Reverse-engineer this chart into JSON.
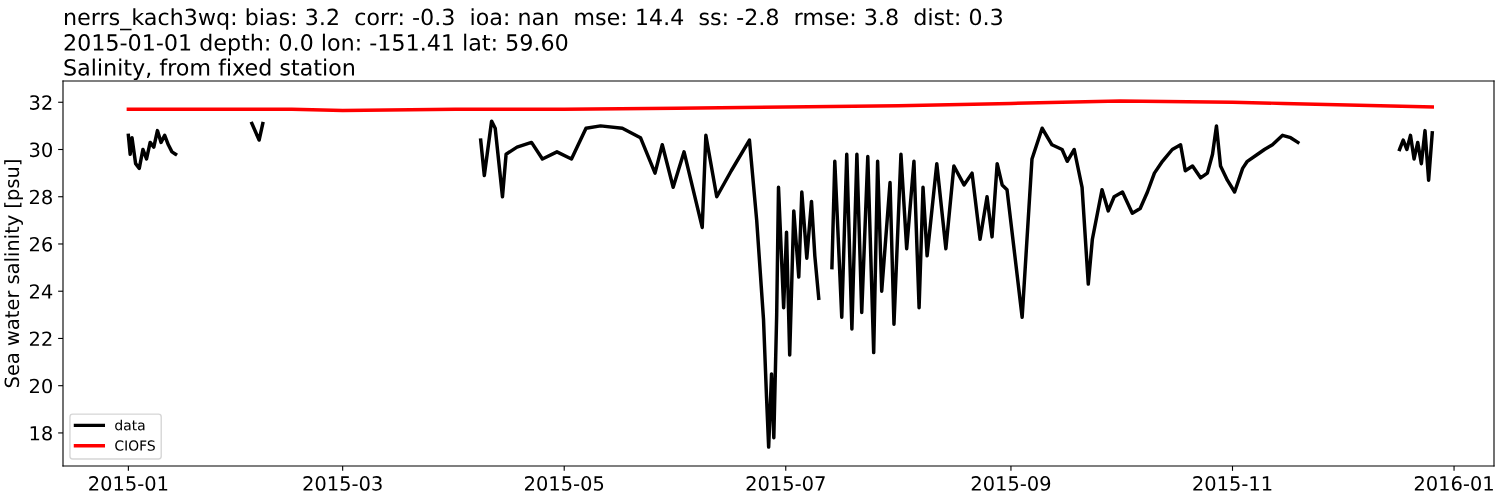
{
  "chart_data": {
    "type": "line",
    "title": "nerrs_kach3wq: bias: 3.2  corr: -0.3  ioa: nan  mse: 14.4  ss: -2.8  rmse: 3.8  dist: 0.3\n2015-01-01 depth: 0.0 lon: -151.41 lat: 59.60\nSalinity, from fixed station",
    "ylabel": "Sea water salinity [psu]",
    "series": [
      {
        "name": "data",
        "color": "#000000",
        "x": [
          "2015-01-01",
          "2015-01-01T12:00",
          "2015-01-02",
          "2015-01-03",
          "2015-01-04",
          "2015-01-05",
          "2015-01-06",
          "2015-01-07",
          "2015-01-08",
          "2015-01-09",
          "2015-01-10",
          "2015-01-11",
          "2015-01-12",
          "2015-01-13",
          "2015-01-14",
          "2015-01-25",
          "2015-02-04",
          "2015-02-06",
          "2015-02-07",
          "2015-03-20",
          "2015-04-08",
          "2015-04-09",
          "2015-04-11",
          "2015-04-12",
          "2015-04-14",
          "2015-04-15",
          "2015-04-18",
          "2015-04-22",
          "2015-04-25",
          "2015-04-29",
          "2015-05-03",
          "2015-05-07",
          "2015-05-11",
          "2015-05-17",
          "2015-05-22",
          "2015-05-26",
          "2015-05-28",
          "2015-05-31",
          "2015-06-03",
          "2015-06-08",
          "2015-06-09",
          "2015-06-12",
          "2015-06-16",
          "2015-06-21",
          "2015-06-23",
          "2015-06-24T21:00",
          "2015-06-25T17:00",
          "2015-06-26T07:00",
          "2015-06-27T02:00",
          "2015-06-27T17:00",
          "2015-06-28T12:00",
          "2015-06-29",
          "2015-06-30T10:00",
          "2015-07-01T05:00",
          "2015-07-02T02:00",
          "2015-07-03T05:00",
          "2015-07-04T14:00",
          "2015-07-05T10:00",
          "2015-07-06T19:00",
          "2015-07-08T02:00",
          "2015-07-09",
          "2015-07-10T02:00",
          "2015-07-12",
          "2015-07-13T17:00",
          "2015-07-14T12:00",
          "2015-07-16T10:00",
          "2015-07-17T19:00",
          "2015-07-19T05:00",
          "2015-07-20T14:00",
          "2015-07-21T22:00",
          "2015-07-23T14:00",
          "2015-07-25T05:00",
          "2015-07-26T07:00",
          "2015-07-27T10:00",
          "2015-07-29T17:00",
          "2015-07-30T19:00",
          "2015-08-01T17:00",
          "2015-08-03T07:00",
          "2015-08-05T07:00",
          "2015-08-06T17:00",
          "2015-08-07T19:00",
          "2015-08-08T22:00",
          "2015-08-11T14:00",
          "2015-08-14T02:00",
          "2015-08-16T07:00",
          "2015-08-19T02:00",
          "2015-08-21T07:00",
          "2015-08-23T12:00",
          "2015-08-25T10:00",
          "2015-08-26T19:00",
          "2015-08-28T05:00",
          "2015-08-29T14:00",
          "2015-08-30T22:00",
          "2015-09-04T02:00",
          "2015-09-06T19:00",
          "2015-09-09T14:00",
          "2015-09-12T07:00",
          "2015-09-15T02:00",
          "2015-09-16T12:00",
          "2015-09-18T10:00",
          "2015-09-20T14:00",
          "2015-09-22T07:00",
          "2015-09-23T10:00",
          "2015-09-26T02:00",
          "2015-09-27T19:00",
          "2015-09-29T10:00",
          "2015-10-01T17:00",
          "2015-10-04T10:00",
          "2015-10-06T14:00",
          "2015-10-08T14:00",
          "2015-10-10T12:00",
          "2015-10-12T17:00",
          "2015-10-15T10:00",
          "2015-10-17T17:00",
          "2015-10-19",
          "2015-10-21",
          "2015-10-23T05:00",
          "2015-10-25T02:00",
          "2015-10-26T12:00",
          "2015-10-27T14:00",
          "2015-10-28T17:00",
          "2015-10-30T14:00",
          "2015-11-01T14:00",
          "2015-11-03T19:00",
          "2015-11-05T02:00",
          "2015-11-07T22:00",
          "2015-11-09T19:00",
          "2015-11-12",
          "2015-11-14T19:00",
          "2015-11-17",
          "2015-11-19",
          "2015-12-05",
          "2015-12-17",
          "2015-12-18",
          "2015-12-19",
          "2015-12-20",
          "2015-12-21",
          "2015-12-22",
          "2015-12-23",
          "2015-12-24",
          "2015-12-25",
          "2015-12-26"
        ],
        "values": [
          30.6,
          29.8,
          30.5,
          29.4,
          29.2,
          30.0,
          29.6,
          30.3,
          30.1,
          30.8,
          30.3,
          30.6,
          30.2,
          29.9,
          29.8,
          null,
          31.1,
          30.4,
          31.1,
          null,
          30.4,
          28.9,
          31.2,
          30.9,
          28.0,
          29.8,
          30.1,
          30.3,
          29.6,
          29.9,
          29.6,
          30.9,
          31.0,
          30.9,
          30.5,
          29.0,
          30.2,
          28.4,
          29.9,
          26.7,
          30.6,
          28.0,
          29.1,
          30.4,
          27.0,
          22.8,
          19.5,
          17.4,
          20.5,
          17.8,
          23.0,
          28.4,
          23.3,
          26.5,
          21.3,
          27.4,
          24.6,
          28.2,
          25.4,
          27.8,
          25.5,
          23.7,
          null,
          25.0,
          29.5,
          22.9,
          29.8,
          22.4,
          29.8,
          23.1,
          29.7,
          21.4,
          29.5,
          24.0,
          28.6,
          22.6,
          29.8,
          25.8,
          29.5,
          23.3,
          28.4,
          25.5,
          29.4,
          25.8,
          29.3,
          28.5,
          29.0,
          26.2,
          28.0,
          26.3,
          29.4,
          28.5,
          28.3,
          22.9,
          29.6,
          30.9,
          30.2,
          30.0,
          29.5,
          30.0,
          28.4,
          24.3,
          26.2,
          28.3,
          27.4,
          28.0,
          28.2,
          27.3,
          27.5,
          28.2,
          29.0,
          29.5,
          30.0,
          30.2,
          29.1,
          29.3,
          28.8,
          29.0,
          29.8,
          31.0,
          29.3,
          28.7,
          28.2,
          29.2,
          29.5,
          29.8,
          30.0,
          30.2,
          30.6,
          30.5,
          30.3,
          null,
          30.0,
          30.4,
          30.0,
          30.6,
          29.6,
          30.3,
          29.4,
          30.8,
          28.7,
          30.7
        ]
      },
      {
        "name": "CIOFS",
        "color": "#ff0000",
        "x": [
          "2015-01-01",
          "2015-02-15",
          "2015-03-01",
          "2015-04-01",
          "2015-05-01",
          "2015-06-01",
          "2015-07-01",
          "2015-08-01",
          "2015-09-01",
          "2015-10-01",
          "2015-11-01",
          "2015-11-15",
          "2015-12-26"
        ],
        "values": [
          31.7,
          31.7,
          31.65,
          31.7,
          31.7,
          31.75,
          31.8,
          31.85,
          31.95,
          32.05,
          32.0,
          31.95,
          31.8
        ]
      }
    ],
    "xlim": [
      "2014-12-14",
      "2016-01-12"
    ],
    "xticks": [
      {
        "value": "2015-01-01",
        "label": "2015-01"
      },
      {
        "value": "2015-03-01",
        "label": "2015-03"
      },
      {
        "value": "2015-05-01",
        "label": "2015-05"
      },
      {
        "value": "2015-07-01",
        "label": "2015-07"
      },
      {
        "value": "2015-09-01",
        "label": "2015-09"
      },
      {
        "value": "2015-11-01",
        "label": "2015-11"
      },
      {
        "value": "2016-01-01",
        "label": "2016-01"
      }
    ],
    "ylim": [
      16.6,
      32.9
    ],
    "yticks": [
      18,
      20,
      22,
      24,
      26,
      28,
      30,
      32
    ],
    "legend": "bottom left",
    "grid": false,
    "line_style": "solid",
    "marker": "none"
  }
}
